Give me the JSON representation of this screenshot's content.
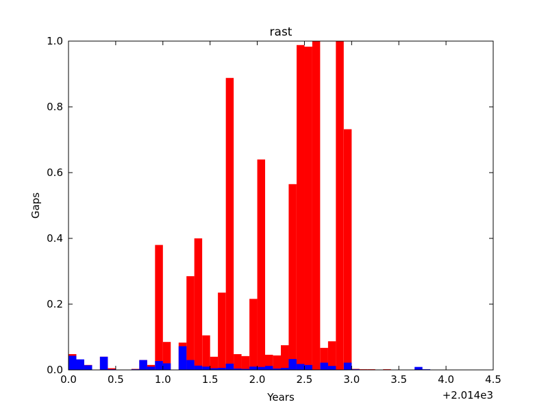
{
  "chart_data": {
    "type": "bar",
    "title": "rast",
    "xlabel": "Years",
    "ylabel": "Gaps",
    "x_offset_label": "+2.014e3",
    "xlim": [
      0.0,
      4.5
    ],
    "ylim": [
      0.0,
      1.0
    ],
    "x_ticks": [
      "0.0",
      "0.5",
      "1.0",
      "1.5",
      "2.0",
      "2.5",
      "3.0",
      "3.5",
      "4.0",
      "4.5"
    ],
    "y_ticks": [
      "0.0",
      "0.2",
      "0.4",
      "0.6",
      "0.8",
      "1.0"
    ],
    "bin_width": 0.0833,
    "grid": false,
    "series": [
      {
        "color": "#ff0000",
        "x": [
          0.0,
          0.083,
          0.167,
          0.25,
          0.333,
          0.417,
          0.5,
          0.583,
          0.667,
          0.75,
          0.833,
          0.917,
          1.0,
          1.083,
          1.167,
          1.25,
          1.333,
          1.417,
          1.5,
          1.583,
          1.667,
          1.75,
          1.833,
          1.917,
          2.0,
          2.083,
          2.167,
          2.25,
          2.333,
          2.417,
          2.5,
          2.583,
          2.667,
          2.75,
          2.833,
          2.917,
          3.0,
          3.083,
          3.167,
          3.25,
          3.333,
          3.417,
          3.5,
          3.583,
          3.667,
          3.75,
          3.833
        ],
        "values": [
          0.048,
          0.03,
          0.015,
          0.0,
          0.04,
          0.005,
          0.0,
          0.0,
          0.003,
          0.03,
          0.015,
          0.38,
          0.085,
          0.0,
          0.083,
          0.285,
          0.4,
          0.105,
          0.04,
          0.235,
          0.888,
          0.048,
          0.042,
          0.216,
          0.64,
          0.046,
          0.044,
          0.075,
          0.565,
          0.988,
          0.983,
          1.0,
          0.067,
          0.087,
          1.0,
          0.732,
          0.003,
          0.002,
          0.002,
          0.0,
          0.002,
          0.0,
          0.0,
          0.0,
          0.002,
          0.0,
          0.0
        ]
      },
      {
        "color": "#0000ff",
        "x": [
          0.0,
          0.083,
          0.167,
          0.25,
          0.333,
          0.417,
          0.5,
          0.583,
          0.667,
          0.75,
          0.833,
          0.917,
          1.0,
          1.083,
          1.167,
          1.25,
          1.333,
          1.417,
          1.5,
          1.583,
          1.667,
          1.75,
          1.833,
          1.917,
          2.0,
          2.083,
          2.167,
          2.25,
          2.333,
          2.417,
          2.5,
          2.583,
          2.667,
          2.75,
          2.833,
          2.917,
          3.0,
          3.083,
          3.167,
          3.25,
          3.333,
          3.417,
          3.5,
          3.583,
          3.667,
          3.75,
          3.833
        ],
        "values": [
          0.043,
          0.032,
          0.014,
          0.0,
          0.04,
          0.002,
          0.0,
          0.0,
          0.002,
          0.03,
          0.01,
          0.027,
          0.02,
          0.0,
          0.072,
          0.03,
          0.013,
          0.01,
          0.005,
          0.006,
          0.019,
          0.004,
          0.003,
          0.01,
          0.009,
          0.012,
          0.004,
          0.006,
          0.033,
          0.018,
          0.015,
          0.0,
          0.022,
          0.012,
          0.0,
          0.022,
          0.002,
          0.0,
          0.0,
          0.0,
          0.0,
          0.0,
          0.0,
          0.0,
          0.009,
          0.002,
          0.0
        ]
      }
    ]
  }
}
